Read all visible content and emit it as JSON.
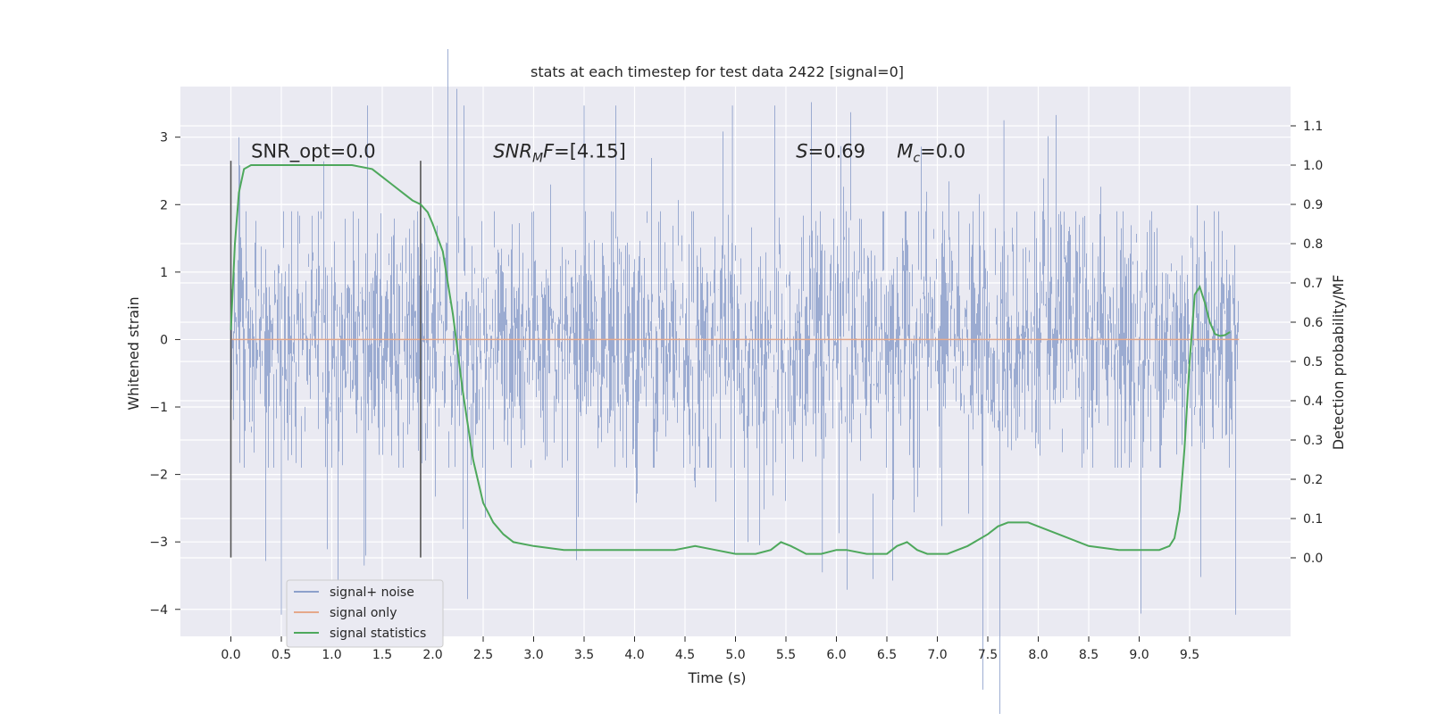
{
  "chart_data": {
    "type": "line",
    "title": "stats at each timestep for test data 2422 [signal=0]",
    "xlabel": "Time (s)",
    "ylabel": "Whitened strain",
    "y2label": "Detection probability/MF",
    "xlim": [
      -0.5,
      10.5
    ],
    "ylim": [
      -4.4,
      3.75
    ],
    "y2lim": [
      -0.2,
      1.2
    ],
    "x_ticks": [
      0.0,
      0.5,
      1.0,
      1.5,
      2.0,
      2.5,
      3.0,
      3.5,
      4.0,
      4.5,
      5.0,
      5.5,
      6.0,
      6.5,
      7.0,
      7.5,
      8.0,
      8.5,
      9.0,
      9.5
    ],
    "x_tick_labels": [
      "0.0",
      "0.5",
      "1.0",
      "1.5",
      "2.0",
      "2.5",
      "3.0",
      "3.5",
      "4.0",
      "4.5",
      "5.0",
      "5.5",
      "6.0",
      "6.5",
      "7.0",
      "7.5",
      "8.0",
      "8.5",
      "9.0",
      "9.5"
    ],
    "y_ticks": [
      -4,
      -3,
      -2,
      -1,
      0,
      1,
      2,
      3
    ],
    "y_tick_labels": [
      "−4",
      "−3",
      "−2",
      "−1",
      "0",
      "1",
      "2",
      "3"
    ],
    "y2_ticks": [
      0.0,
      0.1,
      0.2,
      0.3,
      0.4,
      0.5,
      0.6,
      0.7,
      0.8,
      0.9,
      1.0,
      1.1
    ],
    "y2_tick_labels": [
      "0.0",
      "0.1",
      "0.2",
      "0.3",
      "0.4",
      "0.5",
      "0.6",
      "0.7",
      "0.8",
      "0.9",
      "1.0",
      "1.1"
    ],
    "grid": true,
    "legend_position": "lower-left",
    "background": "#eaeaf2",
    "annotations": [
      {
        "id": "snr-opt",
        "text": "SNR_opt=0.0",
        "x": 0.2,
        "y": 2.7
      },
      {
        "id": "snr-mf",
        "text": "SNR_MF=[4.15]",
        "x": 2.6,
        "y": 2.7
      },
      {
        "id": "s-stat",
        "text": "S=0.69",
        "x": 5.6,
        "y": 2.7
      },
      {
        "id": "mc",
        "text": "M_c=0.0",
        "x": 6.6,
        "y": 2.7
      }
    ],
    "vlines": [
      {
        "x": 0.0,
        "ymin": -3.23,
        "ymax": 2.65
      },
      {
        "x": 1.88,
        "ymin": -3.23,
        "ymax": 2.65
      }
    ],
    "series": [
      {
        "name": "signal+ noise",
        "color": "#8da0cb",
        "x_range": [
          0.0,
          9.99
        ],
        "noise_envelope_std": 0.9,
        "noise_max": 3.47,
        "noise_min": -4.08
      },
      {
        "name": "signal only",
        "color": "#e5a88a",
        "x": [
          0.0,
          9.99
        ],
        "y": [
          0.0,
          0.0
        ]
      },
      {
        "name": "signal statistics",
        "color": "#4ea85c",
        "axis": "right",
        "x": [
          0.0,
          0.04,
          0.08,
          0.13,
          0.2,
          0.3,
          0.5,
          0.8,
          1.0,
          1.2,
          1.4,
          1.5,
          1.6,
          1.7,
          1.8,
          1.88,
          1.95,
          2.0,
          2.1,
          2.2,
          2.3,
          2.4,
          2.5,
          2.6,
          2.7,
          2.8,
          3.0,
          3.3,
          3.5,
          4.0,
          4.4,
          4.6,
          4.8,
          5.0,
          5.2,
          5.35,
          5.45,
          5.55,
          5.7,
          5.85,
          6.0,
          6.1,
          6.3,
          6.5,
          6.6,
          6.7,
          6.8,
          6.9,
          7.1,
          7.3,
          7.5,
          7.6,
          7.7,
          7.8,
          7.9,
          8.0,
          8.2,
          8.5,
          8.8,
          9.0,
          9.2,
          9.3,
          9.35,
          9.4,
          9.45,
          9.5,
          9.55,
          9.6,
          9.65,
          9.7,
          9.75,
          9.8,
          9.85,
          9.9
        ],
        "y": [
          0.58,
          0.8,
          0.93,
          0.99,
          1.0,
          1.0,
          1.0,
          1.0,
          1.0,
          1.0,
          0.99,
          0.97,
          0.95,
          0.93,
          0.91,
          0.9,
          0.88,
          0.85,
          0.78,
          0.62,
          0.42,
          0.25,
          0.14,
          0.09,
          0.06,
          0.04,
          0.03,
          0.02,
          0.02,
          0.02,
          0.02,
          0.03,
          0.02,
          0.01,
          0.01,
          0.02,
          0.04,
          0.03,
          0.01,
          0.01,
          0.02,
          0.02,
          0.01,
          0.01,
          0.03,
          0.04,
          0.02,
          0.01,
          0.01,
          0.03,
          0.06,
          0.08,
          0.09,
          0.09,
          0.09,
          0.08,
          0.06,
          0.03,
          0.02,
          0.02,
          0.02,
          0.03,
          0.05,
          0.12,
          0.28,
          0.5,
          0.67,
          0.69,
          0.65,
          0.6,
          0.57,
          0.565,
          0.567,
          0.575
        ]
      }
    ]
  }
}
